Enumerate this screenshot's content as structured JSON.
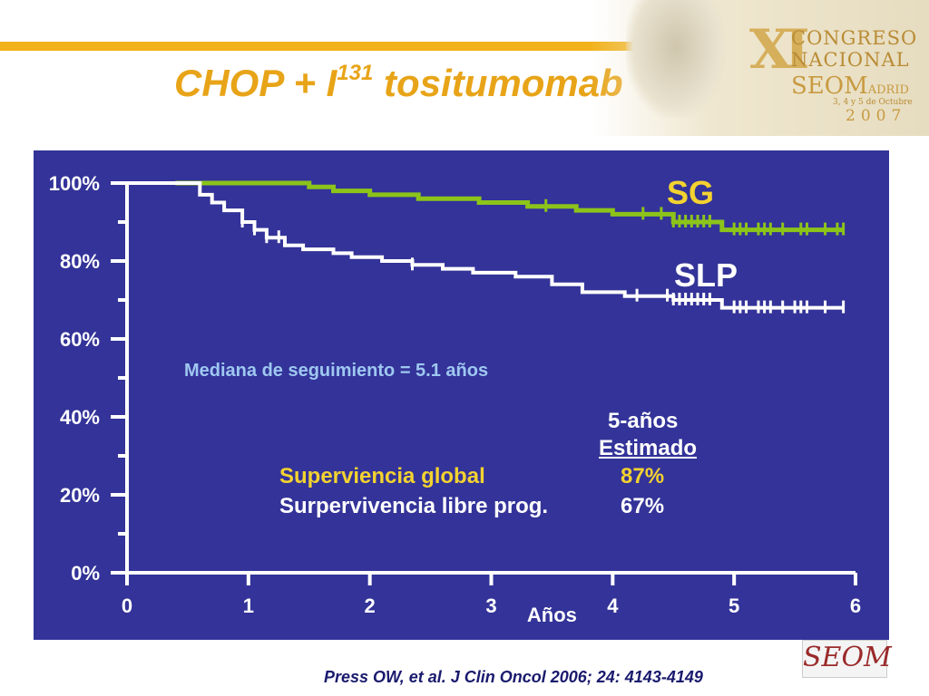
{
  "slide": {
    "title_main": "CHOP + I",
    "title_sup": "131",
    "title_tail": " tositumomab",
    "citation": "Press OW, et al. J Clin Oncol 2006; 24: 4143-4149",
    "accent_color": "#f2b21b",
    "panel_color": "#333399"
  },
  "banner": {
    "roman": "XI",
    "line1": "CONGRESO",
    "line2": "NACIONAL",
    "org": "SEOM",
    "city": "ADRID",
    "dates": "3, 4 y 5 de Octubre",
    "year": "2007"
  },
  "logo": {
    "text": "SEOM"
  },
  "annotations": {
    "median": "Mediana de seguimiento = 5.1 años",
    "col_header_1": "5-años",
    "col_header_2": "Estimado",
    "row1_label": "Superviencia global",
    "row1_value": "87%",
    "row2_label": "Surpervivencia libre prog.",
    "row2_value": "67%"
  },
  "chart_data": {
    "type": "line",
    "step": true,
    "xlabel": "Años",
    "ylabel": "",
    "xlim": [
      0,
      6
    ],
    "ylim": [
      0,
      100
    ],
    "x_ticks": [
      0,
      1,
      2,
      3,
      4,
      5,
      6
    ],
    "y_ticks": [
      0,
      20,
      40,
      60,
      80,
      100
    ],
    "y_tick_labels": [
      "0%",
      "20%",
      "40%",
      "60%",
      "80%",
      "100%"
    ],
    "grid": false,
    "series": [
      {
        "name": "SG",
        "color": "#8cc41a",
        "points": [
          [
            0.4,
            100
          ],
          [
            1.5,
            100
          ],
          [
            1.5,
            99
          ],
          [
            1.7,
            99
          ],
          [
            1.7,
            98
          ],
          [
            2.0,
            98
          ],
          [
            2.0,
            97
          ],
          [
            2.4,
            97
          ],
          [
            2.4,
            96
          ],
          [
            2.9,
            96
          ],
          [
            2.9,
            95
          ],
          [
            3.3,
            95
          ],
          [
            3.3,
            94
          ],
          [
            3.7,
            94
          ],
          [
            3.7,
            93
          ],
          [
            4.0,
            93
          ],
          [
            4.0,
            92
          ],
          [
            4.5,
            92
          ],
          [
            4.5,
            90
          ],
          [
            4.9,
            90
          ],
          [
            4.9,
            88
          ],
          [
            5.9,
            88
          ]
        ],
        "censors": [
          3.45,
          4.25,
          4.4,
          4.5,
          4.55,
          4.6,
          4.65,
          4.7,
          4.75,
          4.8,
          5.0,
          5.05,
          5.1,
          5.2,
          5.25,
          5.3,
          5.4,
          5.55,
          5.6,
          5.75,
          5.85,
          5.9
        ]
      },
      {
        "name": "SLP",
        "color": "#ffffff",
        "points": [
          [
            0,
            100
          ],
          [
            0.6,
            100
          ],
          [
            0.6,
            97
          ],
          [
            0.7,
            97
          ],
          [
            0.7,
            95
          ],
          [
            0.8,
            95
          ],
          [
            0.8,
            93
          ],
          [
            0.95,
            93
          ],
          [
            0.95,
            90
          ],
          [
            1.05,
            90
          ],
          [
            1.05,
            88
          ],
          [
            1.15,
            88
          ],
          [
            1.15,
            86
          ],
          [
            1.3,
            86
          ],
          [
            1.3,
            84
          ],
          [
            1.45,
            84
          ],
          [
            1.45,
            83
          ],
          [
            1.7,
            83
          ],
          [
            1.7,
            82
          ],
          [
            1.85,
            82
          ],
          [
            1.85,
            81
          ],
          [
            2.1,
            81
          ],
          [
            2.1,
            80
          ],
          [
            2.35,
            80
          ],
          [
            2.35,
            79
          ],
          [
            2.6,
            79
          ],
          [
            2.6,
            78
          ],
          [
            2.85,
            78
          ],
          [
            2.85,
            77
          ],
          [
            3.2,
            77
          ],
          [
            3.2,
            76
          ],
          [
            3.5,
            76
          ],
          [
            3.5,
            74
          ],
          [
            3.75,
            74
          ],
          [
            3.75,
            72
          ],
          [
            4.1,
            72
          ],
          [
            4.1,
            71
          ],
          [
            4.5,
            71
          ],
          [
            4.5,
            70
          ],
          [
            4.9,
            70
          ],
          [
            4.9,
            68
          ],
          [
            5.9,
            68
          ]
        ],
        "censors": [
          0.95,
          1.05,
          1.15,
          1.25,
          2.35,
          4.2,
          4.45,
          4.5,
          4.55,
          4.6,
          4.65,
          4.7,
          4.75,
          4.8,
          5.0,
          5.05,
          5.1,
          5.2,
          5.25,
          5.3,
          5.4,
          5.5,
          5.55,
          5.6,
          5.75,
          5.9
        ]
      }
    ],
    "label_colors": {
      "SG": "#f3d230",
      "SLP": "#ffffff"
    }
  }
}
